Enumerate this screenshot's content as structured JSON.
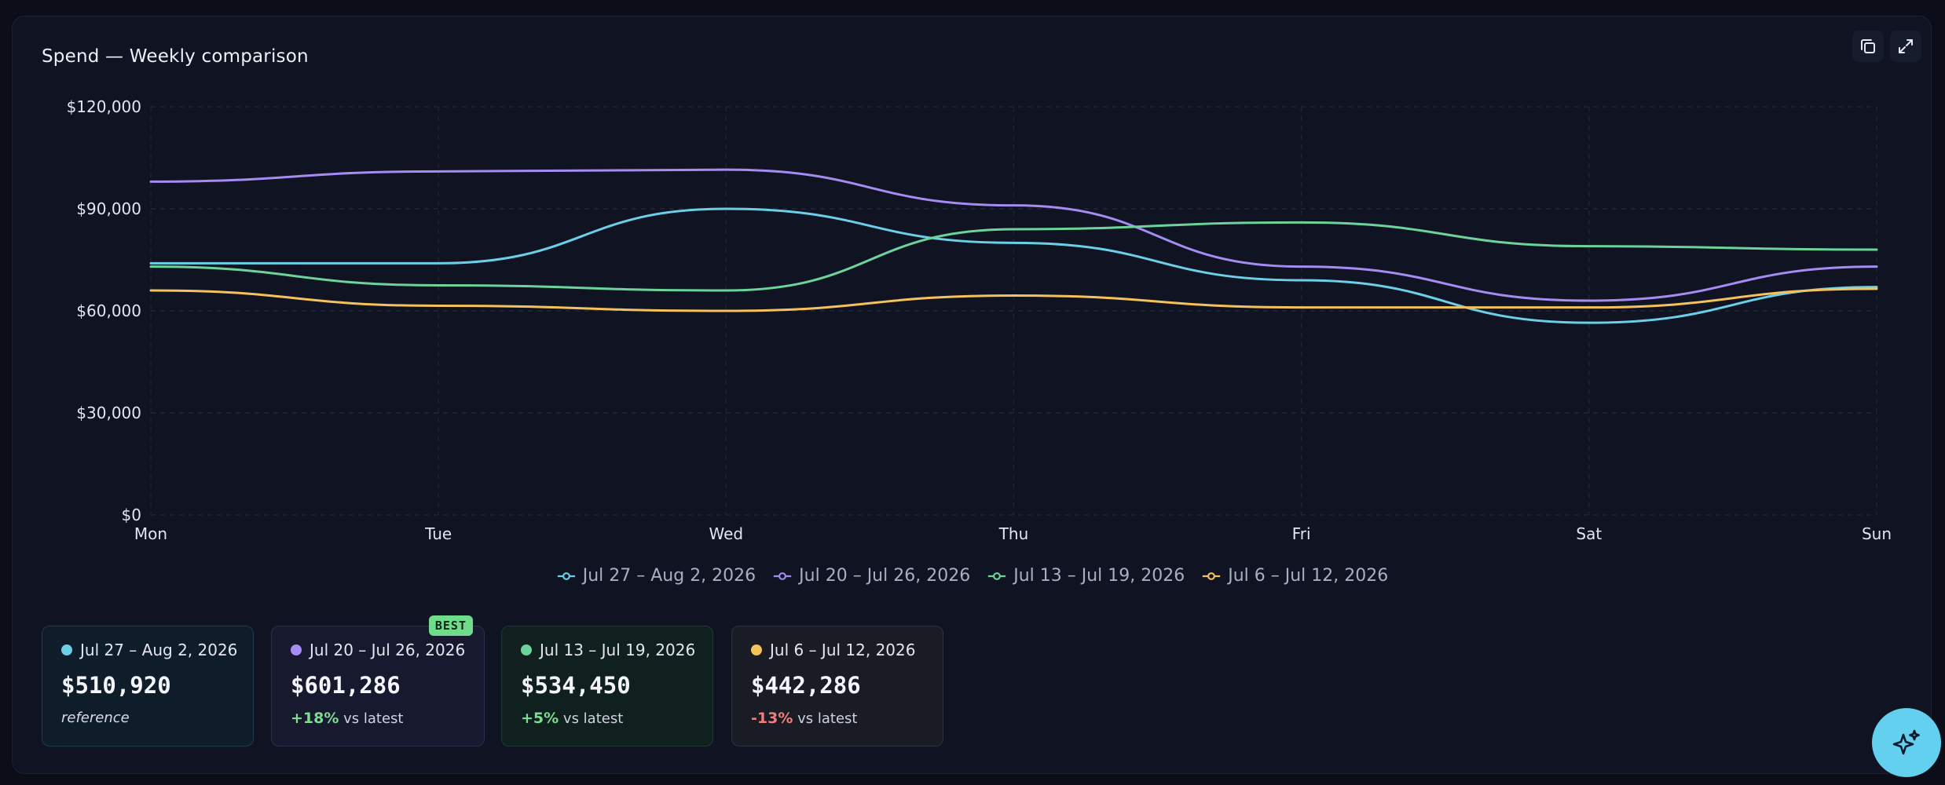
{
  "chart": {
    "title": "Spend — Weekly comparison"
  },
  "chart_data": {
    "type": "line",
    "title": "Spend — Weekly comparison",
    "xlabel": "",
    "ylabel": "",
    "categories": [
      "Mon",
      "Tue",
      "Wed",
      "Thu",
      "Fri",
      "Sat",
      "Sun"
    ],
    "y_ticks": [
      "$0",
      "$30,000",
      "$60,000",
      "$90,000",
      "$120,000"
    ],
    "ylim": [
      0,
      120000
    ],
    "grid": true,
    "legend_position": "bottom-center",
    "series": [
      {
        "name": "Jul 27 – Aug 2, 2026",
        "color": "#6ccfe8",
        "values": [
          74000,
          74000,
          90000,
          80000,
          69000,
          56500,
          67000
        ]
      },
      {
        "name": "Jul 20 – Jul 26, 2026",
        "color": "#a58cf2",
        "values": [
          98000,
          101000,
          101500,
          91000,
          73000,
          63000,
          73000
        ]
      },
      {
        "name": "Jul 13 – Jul 19, 2026",
        "color": "#6cd49a",
        "values": [
          73000,
          67500,
          66000,
          84000,
          86000,
          79000,
          78000
        ]
      },
      {
        "name": "Jul 6 – Jul 12, 2026",
        "color": "#f4c15a",
        "values": [
          66000,
          61500,
          60000,
          64500,
          61000,
          61000,
          66500
        ]
      }
    ]
  },
  "cards": [
    {
      "range": "Jul 27 – Aug 2, 2026",
      "total": "$510,920",
      "sub": "reference",
      "color": "#6ccfe8"
    },
    {
      "range": "Jul 20 – Jul 26, 2026",
      "total": "$601,286",
      "delta": "+18%",
      "sub": "vs latest",
      "badge": "BEST",
      "color": "#a58cf2"
    },
    {
      "range": "Jul 13 – Jul 19, 2026",
      "total": "$534,450",
      "delta": "+5%",
      "sub": "vs latest",
      "color": "#6cd49a"
    },
    {
      "range": "Jul 6 – Jul 12, 2026",
      "total": "$442,286",
      "delta": "-13%",
      "sub": "vs latest",
      "color": "#f4c15a"
    }
  ],
  "icons": {
    "copy": "copy-icon",
    "expand": "expand-icon",
    "assistant": "sparkle-icon"
  }
}
